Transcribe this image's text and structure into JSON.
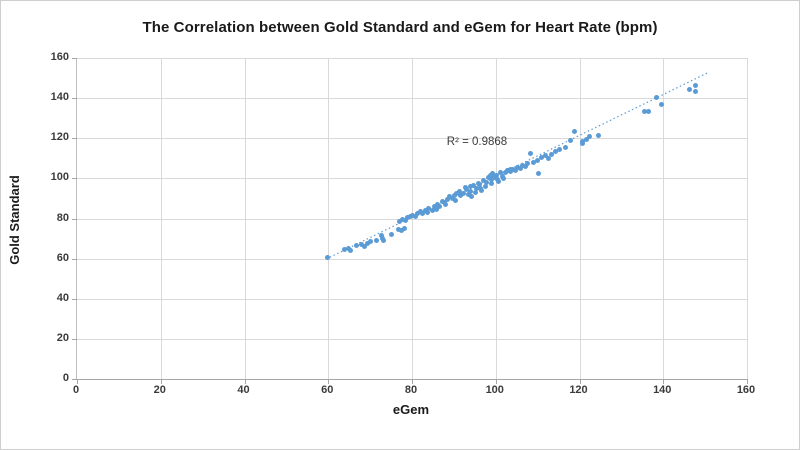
{
  "chart": {
    "title": "The Correlation between Gold Standard and eGem for Heart Rate (bpm)",
    "annotation_text": "R² = 0.9868",
    "xlabel": "eGem",
    "ylabel": "Gold Standard"
  },
  "chart_data": {
    "type": "scatter",
    "title": "The Correlation between Gold Standard and eGem for Heart Rate (bpm)",
    "xlabel": "eGem",
    "ylabel": "Gold Standard",
    "xlim": [
      0,
      160
    ],
    "ylim": [
      0,
      160
    ],
    "xticks": [
      0,
      20,
      40,
      60,
      80,
      100,
      120,
      140,
      160
    ],
    "yticks": [
      0,
      20,
      40,
      60,
      80,
      100,
      120,
      140,
      160
    ],
    "grid": true,
    "legend": false,
    "annotation": {
      "text": "R² = 0.9868",
      "r_squared": 0.9868
    },
    "marker_color": "#5B9BD5",
    "gridline_color": "#d9d9d9",
    "trendline": {
      "style": "dotted",
      "color": "#5B9BD5",
      "x1": 59.5,
      "y1": 59.8,
      "x2": 150.5,
      "y2": 152.5
    },
    "series_name": "Heart Rate (bpm)",
    "points": [
      [
        59.9,
        60.5
      ],
      [
        63.9,
        64.6
      ],
      [
        64.9,
        65.1
      ],
      [
        65.3,
        64.0
      ],
      [
        66.7,
        66.3
      ],
      [
        67.9,
        66.8
      ],
      [
        68.6,
        65.8
      ],
      [
        69.3,
        67.7
      ],
      [
        70.2,
        68.3
      ],
      [
        71.5,
        69.1
      ],
      [
        72.6,
        71.3
      ],
      [
        73.0,
        70.1
      ],
      [
        73.3,
        69.1
      ],
      [
        75.2,
        72.1
      ],
      [
        76.8,
        74.3
      ],
      [
        77.0,
        78.3
      ],
      [
        77.6,
        73.8
      ],
      [
        77.7,
        79.6
      ],
      [
        78.3,
        74.9
      ],
      [
        78.4,
        79.1
      ],
      [
        79.0,
        80.4
      ],
      [
        79.6,
        80.9
      ],
      [
        80.2,
        81.6
      ],
      [
        80.8,
        80.9
      ],
      [
        81.4,
        82.6
      ],
      [
        82.0,
        83.3
      ],
      [
        82.6,
        82.6
      ],
      [
        83.2,
        84.2
      ],
      [
        83.6,
        82.9
      ],
      [
        84.0,
        84.9
      ],
      [
        84.8,
        84.1
      ],
      [
        85.4,
        85.9
      ],
      [
        85.8,
        84.6
      ],
      [
        86.0,
        87.1
      ],
      [
        86.6,
        86.2
      ],
      [
        87.2,
        88.7
      ],
      [
        87.7,
        87.9
      ],
      [
        88.0,
        86.9
      ],
      [
        88.4,
        89.6
      ],
      [
        89.0,
        90.9
      ],
      [
        89.6,
        89.9
      ],
      [
        90.1,
        91.6
      ],
      [
        90.4,
        89.0
      ],
      [
        90.7,
        92.5
      ],
      [
        91.4,
        93.7
      ],
      [
        91.5,
        91.6
      ],
      [
        92.3,
        92.5
      ],
      [
        92.8,
        95.3
      ],
      [
        93.0,
        94.5
      ],
      [
        93.5,
        92.1
      ],
      [
        93.9,
        93.7
      ],
      [
        94.0,
        95.8
      ],
      [
        94.3,
        91.2
      ],
      [
        94.7,
        96.2
      ],
      [
        95.1,
        93.2
      ],
      [
        95.5,
        94.9
      ],
      [
        95.8,
        97.5
      ],
      [
        96.2,
        97.0
      ],
      [
        96.4,
        95.0
      ],
      [
        96.7,
        94.2
      ],
      [
        97.1,
        98.7
      ],
      [
        97.5,
        95.9
      ],
      [
        97.9,
        97.9
      ],
      [
        98.3,
        100.3
      ],
      [
        98.7,
        101.5
      ],
      [
        98.9,
        99.2
      ],
      [
        99.0,
        97.6
      ],
      [
        99.3,
        102.5
      ],
      [
        99.7,
        100.3
      ],
      [
        100.1,
        101.2
      ],
      [
        100.4,
        99.5
      ],
      [
        100.7,
        98.2
      ],
      [
        101.1,
        102.9
      ],
      [
        101.5,
        101.0
      ],
      [
        101.9,
        99.9
      ],
      [
        102.3,
        102.9
      ],
      [
        102.7,
        103.7
      ],
      [
        102.9,
        104.0
      ],
      [
        103.5,
        103.3
      ],
      [
        103.5,
        104.5
      ],
      [
        104.1,
        104.5
      ],
      [
        104.7,
        103.7
      ],
      [
        105.3,
        105.3
      ],
      [
        105.9,
        104.8
      ],
      [
        106.5,
        106.2
      ],
      [
        107.1,
        105.7
      ],
      [
        107.7,
        107.3
      ],
      [
        108.2,
        112.3
      ],
      [
        109.0,
        107.8
      ],
      [
        109.9,
        109.0
      ],
      [
        110.2,
        102.3
      ],
      [
        111.0,
        110.3
      ],
      [
        111.8,
        111.2
      ],
      [
        112.5,
        109.8
      ],
      [
        113.3,
        112.0
      ],
      [
        114.2,
        113.3
      ],
      [
        115.2,
        114.5
      ],
      [
        116.6,
        115.6
      ],
      [
        117.8,
        119.0
      ],
      [
        118.8,
        123.6
      ],
      [
        120.6,
        118.6
      ],
      [
        120.6,
        117.3
      ],
      [
        121.6,
        119.5
      ],
      [
        122.4,
        120.8
      ],
      [
        124.6,
        121.5
      ],
      [
        135.5,
        133.1
      ],
      [
        136.4,
        133.1
      ],
      [
        138.5,
        140.5
      ],
      [
        139.5,
        136.8
      ],
      [
        146.2,
        144.1
      ],
      [
        147.8,
        146.1
      ],
      [
        147.8,
        143.4
      ]
    ]
  }
}
